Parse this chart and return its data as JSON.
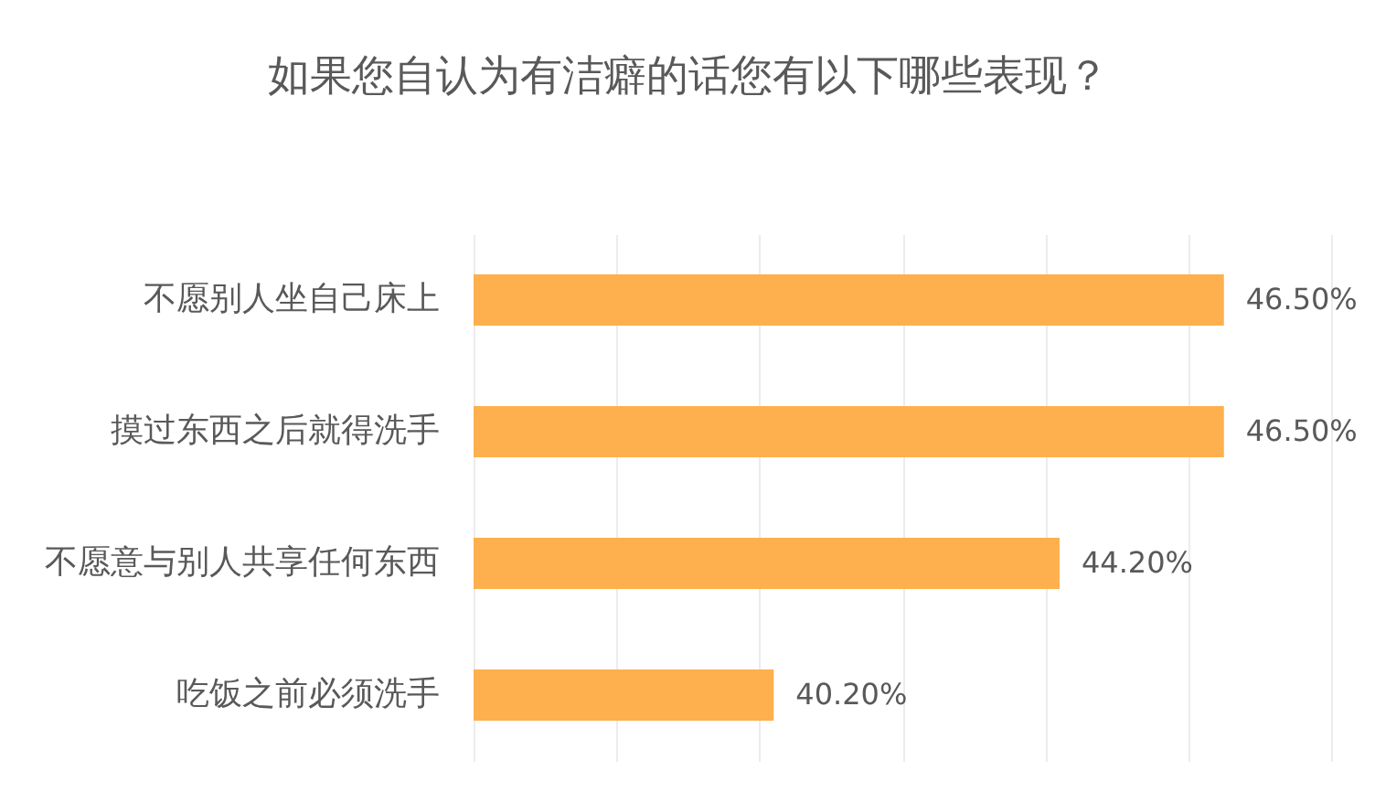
{
  "chart_data": {
    "type": "bar",
    "orientation": "horizontal",
    "title": "如果您自认为有洁癖的话您有以下哪些表现？",
    "categories": [
      "不愿别人坐自己床上",
      "摸过东西之后就得洗手",
      "不愿意与别人共享任何东西",
      "吃饭之前必须洗手"
    ],
    "values": [
      46.5,
      46.5,
      44.2,
      40.2
    ],
    "value_labels": [
      "46.50%",
      "46.50%",
      "44.20%",
      "40.20%"
    ],
    "color": "#fdb04d",
    "xlim": [
      36,
      48
    ],
    "xticks": [
      {
        "value": 36,
        "label": null
      },
      {
        "value": 38,
        "label": null
      },
      {
        "value": 40,
        "label": null
      },
      {
        "value": 42,
        "label": null
      },
      {
        "value": 44,
        "label": null
      },
      {
        "value": 46,
        "label": null
      },
      {
        "value": 48,
        "label": null
      }
    ],
    "grid": "x",
    "tick_labels": "y",
    "legend": false
  }
}
